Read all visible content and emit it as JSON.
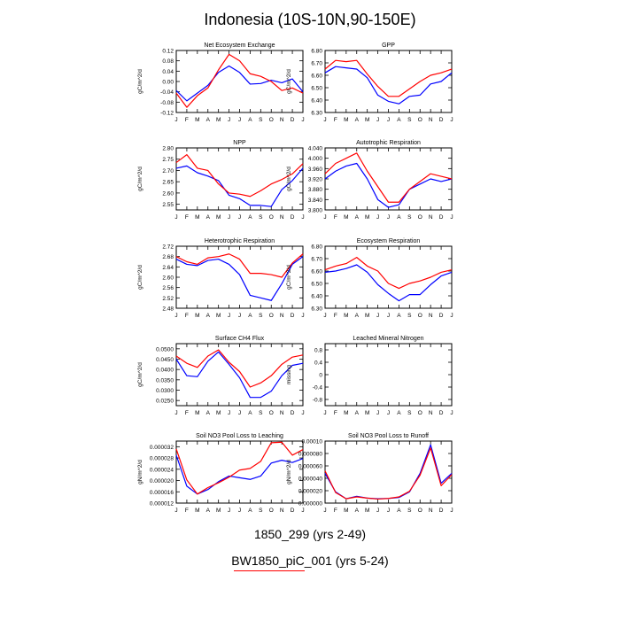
{
  "title": "Indonesia (10S-10N,90-150E)",
  "legend": {
    "series1_label": "1850_299 (yrs 2-49)",
    "series2_label": "BW1850_piC_001 (yrs 5-24)",
    "series1_color": "#0000ff",
    "series2_color": "#ff0000"
  },
  "chart_data": [
    {
      "type": "line",
      "title": "Net Ecosystem Exchange",
      "ylabel": "gC/m^2/d",
      "categories": [
        "J",
        "F",
        "M",
        "A",
        "M",
        "J",
        "J",
        "A",
        "S",
        "O",
        "N",
        "D",
        "J"
      ],
      "ylim": [
        -0.12,
        0.12
      ],
      "yticks": [
        -0.12,
        -0.08,
        -0.04,
        0.0,
        0.04,
        0.08,
        0.12
      ],
      "ytick_labels": [
        "-0.12",
        "-0.08",
        "-0.04",
        "0.00",
        "0.04",
        "0.08",
        "0.12"
      ],
      "series": [
        {
          "name": "1850_299 (yrs 2-49)",
          "color": "#0000ff",
          "values": [
            -0.035,
            -0.075,
            -0.045,
            -0.015,
            0.035,
            0.06,
            0.035,
            -0.01,
            -0.008,
            0.005,
            -0.005,
            0.01,
            -0.04
          ]
        },
        {
          "name": "BW1850_piC_001 (yrs 5-24)",
          "color": "#ff0000",
          "values": [
            -0.045,
            -0.1,
            -0.055,
            -0.025,
            0.045,
            0.105,
            0.08,
            0.03,
            0.02,
            0.0,
            -0.035,
            -0.025,
            -0.045
          ]
        }
      ]
    },
    {
      "type": "line",
      "title": "GPP",
      "ylabel": "gC/m^2/d",
      "categories": [
        "J",
        "F",
        "M",
        "A",
        "M",
        "J",
        "J",
        "A",
        "S",
        "O",
        "N",
        "D",
        "J"
      ],
      "ylim": [
        6.3,
        6.8
      ],
      "yticks": [
        6.3,
        6.4,
        6.5,
        6.6,
        6.7,
        6.8
      ],
      "ytick_labels": [
        "6.30",
        "6.40",
        "6.50",
        "6.60",
        "6.70",
        "6.80"
      ],
      "series": [
        {
          "name": "1850_299 (yrs 2-49)",
          "color": "#0000ff",
          "values": [
            6.62,
            6.67,
            6.66,
            6.65,
            6.58,
            6.44,
            6.39,
            6.37,
            6.43,
            6.44,
            6.53,
            6.55,
            6.62
          ]
        },
        {
          "name": "BW1850_piC_001 (yrs 5-24)",
          "color": "#ff0000",
          "values": [
            6.65,
            6.72,
            6.71,
            6.72,
            6.61,
            6.51,
            6.43,
            6.43,
            6.49,
            6.55,
            6.6,
            6.62,
            6.65
          ]
        }
      ]
    },
    {
      "type": "line",
      "title": "NPP",
      "ylabel": "gC/m^2/d",
      "categories": [
        "J",
        "F",
        "M",
        "A",
        "M",
        "J",
        "J",
        "A",
        "S",
        "O",
        "N",
        "D",
        "J"
      ],
      "ylim": [
        2.525,
        2.8
      ],
      "yticks": [
        2.55,
        2.6,
        2.65,
        2.7,
        2.75,
        2.8
      ],
      "ytick_labels": [
        "2.55",
        "2.60",
        "2.65",
        "2.70",
        "2.75",
        "2.80"
      ],
      "series": [
        {
          "name": "1850_299 (yrs 2-49)",
          "color": "#0000ff",
          "values": [
            2.71,
            2.72,
            2.69,
            2.675,
            2.655,
            2.59,
            2.575,
            2.545,
            2.545,
            2.54,
            2.615,
            2.655,
            2.71
          ]
        },
        {
          "name": "BW1850_piC_001 (yrs 5-24)",
          "color": "#ff0000",
          "values": [
            2.735,
            2.77,
            2.71,
            2.7,
            2.64,
            2.6,
            2.595,
            2.585,
            2.61,
            2.64,
            2.66,
            2.685,
            2.73
          ]
        }
      ]
    },
    {
      "type": "line",
      "title": "Autotrophic Respiration",
      "ylabel": "gC/m^2/d",
      "categories": [
        "J",
        "F",
        "M",
        "A",
        "M",
        "J",
        "J",
        "A",
        "S",
        "O",
        "N",
        "D",
        "J"
      ],
      "ylim": [
        3.8,
        4.04
      ],
      "yticks": [
        3.8,
        3.84,
        3.88,
        3.92,
        3.96,
        4.0,
        4.04
      ],
      "ytick_labels": [
        "3.800",
        "3.840",
        "3.880",
        "3.920",
        "3.960",
        "4.000",
        "4.040"
      ],
      "series": [
        {
          "name": "1850_299 (yrs 2-49)",
          "color": "#0000ff",
          "values": [
            3.92,
            3.95,
            3.97,
            3.98,
            3.92,
            3.84,
            3.81,
            3.82,
            3.88,
            3.9,
            3.92,
            3.91,
            3.92
          ]
        },
        {
          "name": "BW1850_piC_001 (yrs 5-24)",
          "color": "#ff0000",
          "values": [
            3.94,
            3.98,
            4.0,
            4.02,
            3.95,
            3.89,
            3.83,
            3.83,
            3.88,
            3.91,
            3.94,
            3.93,
            3.92
          ]
        }
      ]
    },
    {
      "type": "line",
      "title": "Heterotrophic Respiration",
      "ylabel": "gC/m^2/d",
      "categories": [
        "J",
        "F",
        "M",
        "A",
        "M",
        "J",
        "J",
        "A",
        "S",
        "O",
        "N",
        "D",
        "J"
      ],
      "ylim": [
        2.48,
        2.72
      ],
      "yticks": [
        2.48,
        2.52,
        2.56,
        2.6,
        2.64,
        2.68,
        2.72
      ],
      "ytick_labels": [
        "2.48",
        "2.52",
        "2.56",
        "2.60",
        "2.64",
        "2.68",
        "2.72"
      ],
      "series": [
        {
          "name": "1850_299 (yrs 2-49)",
          "color": "#0000ff",
          "values": [
            2.67,
            2.65,
            2.645,
            2.665,
            2.67,
            2.65,
            2.61,
            2.53,
            2.52,
            2.51,
            2.575,
            2.65,
            2.68
          ]
        },
        {
          "name": "BW1850_piC_001 (yrs 5-24)",
          "color": "#ff0000",
          "values": [
            2.68,
            2.66,
            2.65,
            2.675,
            2.68,
            2.69,
            2.67,
            2.615,
            2.615,
            2.61,
            2.6,
            2.655,
            2.69
          ]
        }
      ]
    },
    {
      "type": "line",
      "title": "Ecosystem Respiration",
      "ylabel": "gC/m^2/d",
      "categories": [
        "J",
        "F",
        "M",
        "A",
        "M",
        "J",
        "J",
        "A",
        "S",
        "O",
        "N",
        "D",
        "J"
      ],
      "ylim": [
        6.3,
        6.8
      ],
      "yticks": [
        6.3,
        6.4,
        6.5,
        6.6,
        6.7,
        6.8
      ],
      "ytick_labels": [
        "6.30",
        "6.40",
        "6.50",
        "6.60",
        "6.70",
        "6.80"
      ],
      "series": [
        {
          "name": "1850_299 (yrs 2-49)",
          "color": "#0000ff",
          "values": [
            6.59,
            6.6,
            6.62,
            6.65,
            6.59,
            6.49,
            6.42,
            6.36,
            6.41,
            6.41,
            6.49,
            6.56,
            6.59
          ]
        },
        {
          "name": "BW1850_piC_001 (yrs 5-24)",
          "color": "#ff0000",
          "values": [
            6.61,
            6.64,
            6.66,
            6.71,
            6.64,
            6.6,
            6.5,
            6.46,
            6.5,
            6.52,
            6.55,
            6.59,
            6.61
          ]
        }
      ]
    },
    {
      "type": "line",
      "title": "Surface CH4 Flux",
      "ylabel": "gC/m^2/d",
      "categories": [
        "J",
        "F",
        "M",
        "A",
        "M",
        "J",
        "J",
        "A",
        "S",
        "O",
        "N",
        "D",
        "J"
      ],
      "ylim": [
        0.0225,
        0.0525
      ],
      "yticks": [
        0.025,
        0.03,
        0.035,
        0.04,
        0.045,
        0.05
      ],
      "ytick_labels": [
        "0.0250",
        "0.0300",
        "0.0350",
        "0.0400",
        "0.0450",
        "0.0500"
      ],
      "series": [
        {
          "name": "1850_299 (yrs 2-49)",
          "color": "#0000ff",
          "values": [
            0.045,
            0.037,
            0.0365,
            0.044,
            0.0485,
            0.0425,
            0.036,
            0.0265,
            0.0265,
            0.0295,
            0.037,
            0.042,
            0.043
          ]
        },
        {
          "name": "BW1850_piC_001 (yrs 5-24)",
          "color": "#ff0000",
          "values": [
            0.0465,
            0.043,
            0.041,
            0.0465,
            0.0495,
            0.0435,
            0.039,
            0.0315,
            0.0335,
            0.037,
            0.0425,
            0.046,
            0.047
          ]
        }
      ]
    },
    {
      "type": "line",
      "title": "Leached Mineral Nitrogen",
      "ylabel": "missing",
      "categories": [
        "J",
        "F",
        "M",
        "A",
        "M",
        "J",
        "J",
        "A",
        "S",
        "O",
        "N",
        "D",
        "J"
      ],
      "ylim": [
        -1,
        1
      ],
      "yticks": [
        -0.8,
        -0.4,
        0,
        0.4,
        0.8
      ],
      "ytick_labels": [
        "-0.8",
        "-0.4",
        "0",
        "0.4",
        "0.8"
      ],
      "series": []
    },
    {
      "type": "line",
      "title": "Soil NO3 Pool Loss to Leaching",
      "ylabel": "gN/m^2/d",
      "categories": [
        "J",
        "F",
        "M",
        "A",
        "M",
        "J",
        "J",
        "A",
        "S",
        "O",
        "N",
        "D",
        "J"
      ],
      "ylim": [
        1.2e-05,
        3.4e-05
      ],
      "yticks": [
        1.2e-05,
        1.6e-05,
        2e-05,
        2.4e-05,
        2.8e-05,
        3.2e-05
      ],
      "ytick_labels": [
        "0.000012",
        "0.000016",
        "0.000020",
        "0.000024",
        "0.000028",
        "0.000032"
      ],
      "series": [
        {
          "name": "1850_299 (yrs 2-49)",
          "color": "#0000ff",
          "values": [
            2.9e-05,
            1.8e-05,
            1.52e-05,
            1.68e-05,
            1.96e-05,
            2.16e-05,
            2.1e-05,
            2.04e-05,
            2.16e-05,
            2.62e-05,
            2.72e-05,
            2.64e-05,
            2.78e-05
          ]
        },
        {
          "name": "BW1850_piC_001 (yrs 5-24)",
          "color": "#ff0000",
          "values": [
            3.12e-05,
            2.02e-05,
            1.52e-05,
            1.75e-05,
            1.92e-05,
            2.12e-05,
            2.37e-05,
            2.43e-05,
            2.68e-05,
            3.34e-05,
            3.36e-05,
            2.9e-05,
            3.1e-05
          ]
        }
      ]
    },
    {
      "type": "line",
      "title": "Soil NO3 Pool Loss to Runoff",
      "ylabel": "gN/m^2/d",
      "categories": [
        "J",
        "F",
        "M",
        "A",
        "M",
        "J",
        "J",
        "A",
        "S",
        "O",
        "N",
        "D",
        "J"
      ],
      "ylim": [
        0,
        0.0001
      ],
      "yticks": [
        0,
        2e-05,
        4e-05,
        6e-05,
        8e-05,
        0.0001
      ],
      "ytick_labels": [
        "0.000000",
        "0.000020",
        "0.000040",
        "0.000060",
        "0.000080",
        "0.00010"
      ],
      "series": [
        {
          "name": "1850_299 (yrs 2-49)",
          "color": "#0000ff",
          "values": [
            4.8e-05,
            1.8e-05,
            7e-06,
            1.1e-05,
            8e-06,
            7e-06,
            7.5e-06,
            9e-06,
            1.8e-05,
            4.8e-05,
            9.4e-05,
            3.2e-05,
            4.8e-05
          ]
        },
        {
          "name": "BW1850_piC_001 (yrs 5-24)",
          "color": "#ff0000",
          "values": [
            5.2e-05,
            1.7e-05,
            7e-06,
            1e-05,
            8e-06,
            6.5e-06,
            7.5e-06,
            1e-05,
            1.9e-05,
            4.5e-05,
            8.9e-05,
            2.8e-05,
            4.6e-05
          ]
        }
      ]
    }
  ]
}
